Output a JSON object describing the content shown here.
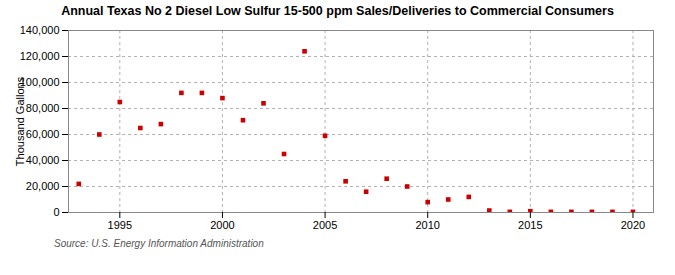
{
  "chart_data": {
    "type": "scatter",
    "title": "Annual Texas No 2 Diesel Low Sulfur 15-500 ppm Sales/Deliveries to Commercial Consumers",
    "ylabel": "Thousand Gallons",
    "annotation": "Source: U.S. Energy Information Administration",
    "x": [
      1993,
      1994,
      1995,
      1996,
      1997,
      1998,
      1999,
      2000,
      2001,
      2002,
      2003,
      2004,
      2005,
      2006,
      2007,
      2008,
      2009,
      2010,
      2011,
      2012,
      2013,
      2014,
      2015,
      2016,
      2017,
      2018,
      2019,
      2020
    ],
    "values": [
      22000,
      60000,
      85000,
      65000,
      68000,
      92000,
      92000,
      88000,
      71000,
      84000,
      45000,
      124000,
      59000,
      24000,
      16000,
      26000,
      20000,
      8000,
      10000,
      12000,
      1500,
      500,
      1000,
      500,
      500,
      500,
      500,
      500
    ],
    "color": "#cc0000",
    "marker": "square",
    "xlim": [
      1992.5,
      2021
    ],
    "xticks": [
      1995,
      2000,
      2005,
      2010,
      2015,
      2020
    ],
    "ylim": [
      0,
      140000
    ],
    "yticks": [
      0,
      {
        "value": 20000,
        "label": "20,000"
      },
      {
        "value": 40000,
        "label": "40,000"
      },
      {
        "value": 60000,
        "label": "60,000"
      },
      {
        "value": 80000,
        "label": "80,000"
      },
      {
        "value": 100000,
        "label": "100,000"
      },
      {
        "value": 120000,
        "label": "120,000"
      },
      {
        "value": 140000,
        "label": "140,000"
      }
    ],
    "grid": true
  }
}
